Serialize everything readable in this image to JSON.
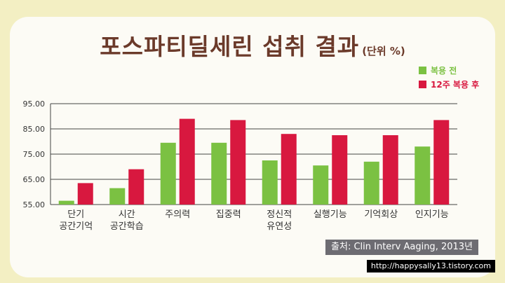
{
  "title": {
    "main": "포스파티딜세린 섭취 결과",
    "unit": "(단위 %)"
  },
  "source": "출처: Clin Interv Aaging, 2013년",
  "watermark": "http://happysally13.tistory.com",
  "colors": {
    "before": "#7bc142",
    "after": "#d8183f",
    "text": "#333333",
    "title": "#6b3a2a"
  },
  "chart_data": {
    "type": "bar",
    "categories": [
      [
        "단기",
        "공간기억"
      ],
      [
        "시간",
        "공간학습"
      ],
      [
        "주의력"
      ],
      [
        "집중력"
      ],
      [
        "정신적",
        "유연성"
      ],
      [
        "실행기능"
      ],
      [
        "기억회상"
      ],
      [
        "인지기능"
      ]
    ],
    "series": [
      {
        "name": "복용 전",
        "values": [
          56.5,
          61.5,
          79.5,
          79.5,
          72.5,
          70.5,
          72.0,
          78.0
        ]
      },
      {
        "name": "12주 복용 후",
        "values": [
          63.5,
          69.0,
          89.0,
          88.5,
          83.0,
          82.5,
          82.5,
          88.5
        ]
      }
    ],
    "y_ticks": [
      "95.00",
      "85.00",
      "75.00",
      "65.00",
      "55.00"
    ],
    "ylim": [
      55,
      95
    ],
    "legend": "top-right",
    "grid": true
  }
}
